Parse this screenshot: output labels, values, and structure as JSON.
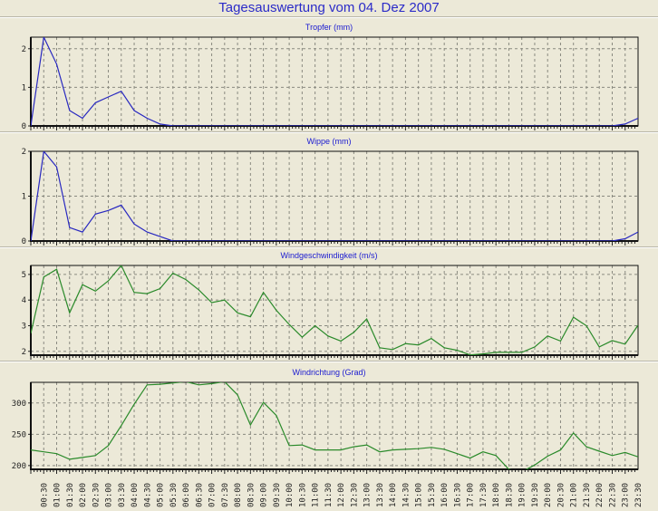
{
  "title": "Tagesauswertung vom 04. Dez 2007",
  "chart_data": [
    {
      "type": "line",
      "title": "Tropfer (mm)",
      "color": "#2828c0",
      "ylim": [
        0,
        2.3
      ],
      "yticks": [
        0,
        1,
        2
      ],
      "values": [
        0,
        2.3,
        1.6,
        0.4,
        0.2,
        0.6,
        0.75,
        0.9,
        0.4,
        0.2,
        0.05,
        0,
        0,
        0,
        0,
        0,
        0,
        0,
        0,
        0,
        0,
        0,
        0,
        0,
        0,
        0,
        0,
        0,
        0,
        0,
        0,
        0,
        0,
        0,
        0,
        0,
        0,
        0,
        0,
        0,
        0,
        0,
        0,
        0,
        0,
        0,
        0.05,
        0.2
      ]
    },
    {
      "type": "line",
      "title": "Wippe (mm)",
      "color": "#2828c0",
      "ylim": [
        0,
        2
      ],
      "yticks": [
        0,
        1,
        2
      ],
      "values": [
        0,
        2.0,
        1.65,
        0.3,
        0.2,
        0.6,
        0.68,
        0.8,
        0.38,
        0.2,
        0.1,
        0,
        0,
        0,
        0,
        0,
        0,
        0,
        0,
        0,
        0,
        0,
        0,
        0,
        0,
        0,
        0,
        0,
        0,
        0,
        0,
        0,
        0,
        0,
        0,
        0,
        0,
        0,
        0,
        0,
        0,
        0,
        0,
        0,
        0,
        0,
        0.05,
        0.2
      ]
    },
    {
      "type": "line",
      "title": "Windgeschwindigkeit (m/s)",
      "color": "#2a8a2a",
      "ylim": [
        1.85,
        5.35
      ],
      "yticks": [
        2,
        3,
        4,
        5
      ],
      "values": [
        2.7,
        4.9,
        5.2,
        3.5,
        4.6,
        4.35,
        4.75,
        5.35,
        4.3,
        4.25,
        4.45,
        5.05,
        4.8,
        4.4,
        3.9,
        4.0,
        3.5,
        3.35,
        4.3,
        3.6,
        3.05,
        2.55,
        3.0,
        2.6,
        2.4,
        2.74,
        3.26,
        2.14,
        2.07,
        2.3,
        2.25,
        2.5,
        2.14,
        2.04,
        1.86,
        1.9,
        1.96,
        1.96,
        1.96,
        2.17,
        2.6,
        2.4,
        3.33,
        3.0,
        2.17,
        2.42,
        2.28,
        3.02
      ]
    },
    {
      "type": "line",
      "title": "Windrichtung (Grad)",
      "color": "#2a8a2a",
      "ylim": [
        194,
        333
      ],
      "yticks": [
        200,
        250,
        300
      ],
      "values": [
        225,
        222,
        219,
        210,
        213,
        216,
        232,
        264,
        298,
        329,
        330,
        332,
        334,
        329,
        331,
        334,
        313,
        265,
        301,
        280,
        232,
        233,
        225,
        225,
        225,
        230,
        233,
        222,
        225,
        226,
        227,
        229,
        226,
        219,
        212,
        222,
        216,
        194,
        190,
        201,
        215,
        225,
        252,
        230,
        223,
        216,
        221,
        214
      ]
    }
  ],
  "xlabels": [
    "00:30",
    "01:00",
    "01:30",
    "02:00",
    "02:30",
    "03:00",
    "03:30",
    "04:00",
    "04:30",
    "05:00",
    "05:30",
    "06:00",
    "06:30",
    "07:00",
    "07:30",
    "08:00",
    "08:30",
    "09:00",
    "09:30",
    "10:00",
    "10:30",
    "11:00",
    "11:30",
    "12:00",
    "12:30",
    "13:00",
    "13:30",
    "14:00",
    "14:30",
    "15:00",
    "15:30",
    "16:00",
    "16:30",
    "17:00",
    "17:30",
    "18:00",
    "18:30",
    "19:00",
    "19:30",
    "20:00",
    "20:30",
    "21:00",
    "21:30",
    "22:00",
    "22:30",
    "23:00",
    "23:30"
  ]
}
